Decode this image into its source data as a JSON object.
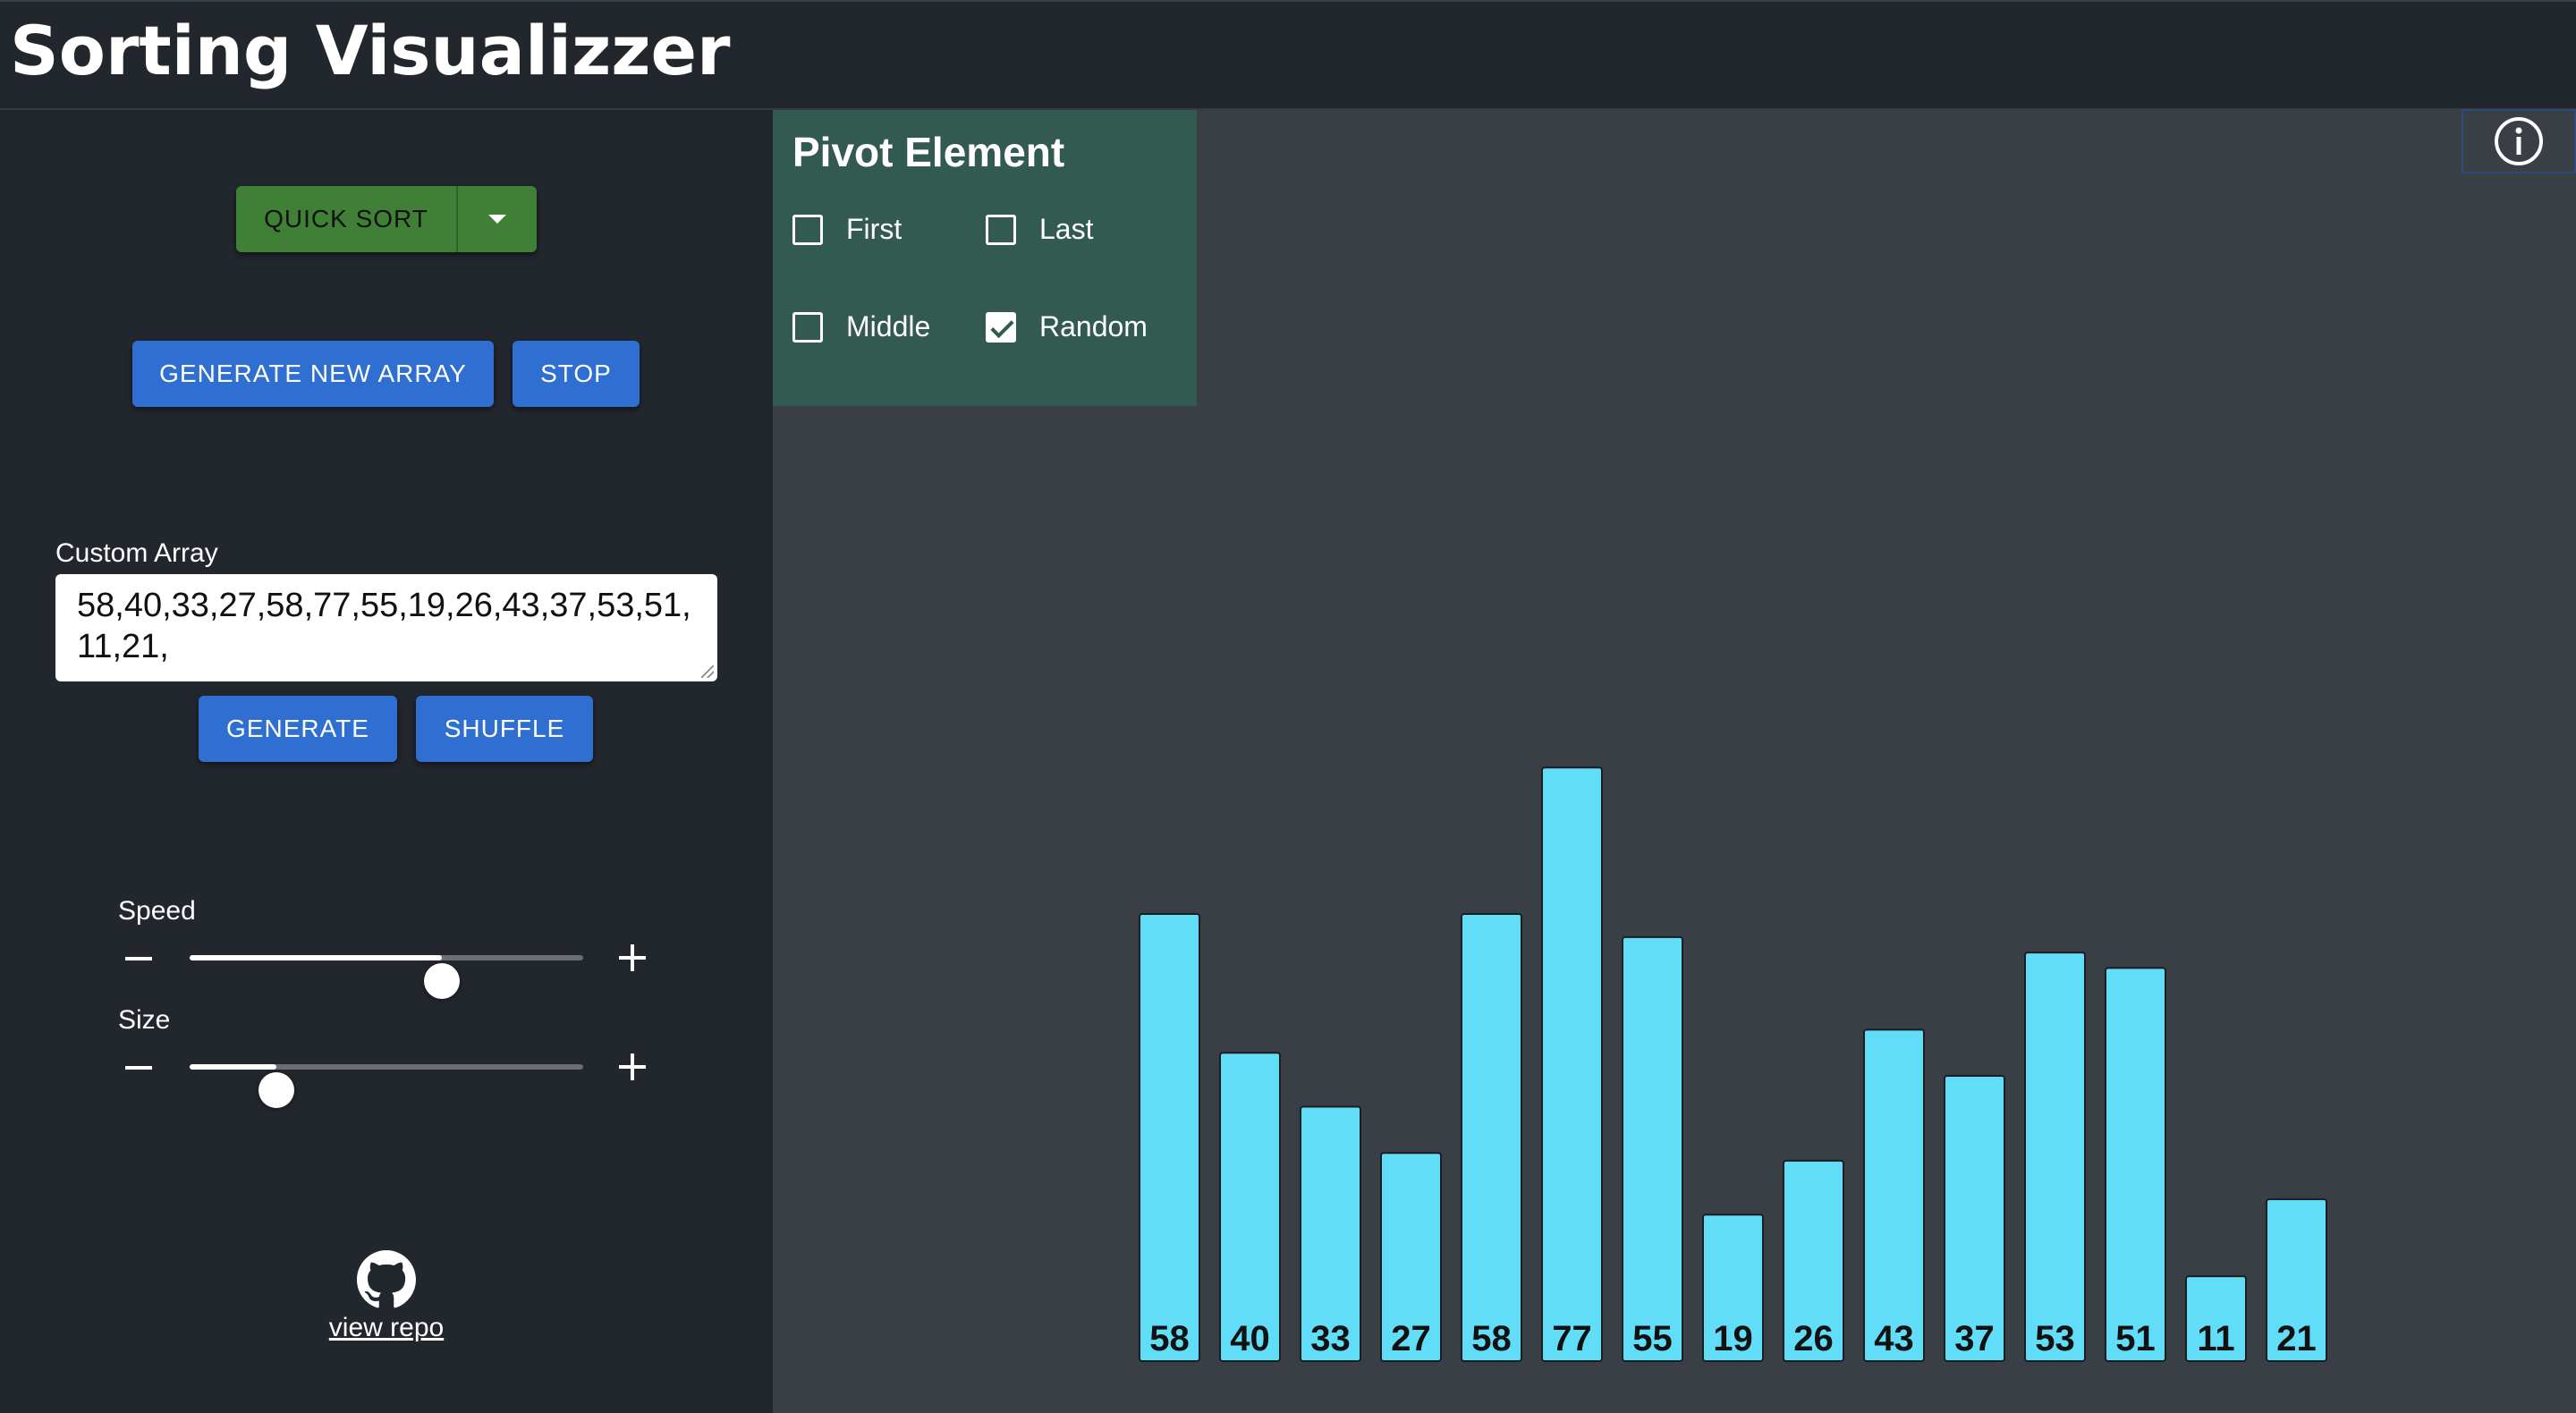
{
  "header": {
    "title": "Sorting Visualizzer"
  },
  "controls": {
    "algorithm": {
      "selected": "QUICK SORT"
    },
    "generate_new_array_label": "GENERATE NEW ARRAY",
    "stop_label": "STOP",
    "custom_array": {
      "label": "Custom Array",
      "value": "58,40,33,27,58,77,55,19,26,43,37,53,51,11,21,"
    },
    "generate_label": "GENERATE",
    "shuffle_label": "SHUFFLE",
    "speed": {
      "label": "Speed",
      "value_fraction": 0.64
    },
    "size": {
      "label": "Size",
      "value_fraction": 0.22
    },
    "github": {
      "icon": "github-icon",
      "link_text": "view repo"
    }
  },
  "pivot": {
    "title": "Pivot Element",
    "options": [
      {
        "label": "First",
        "checked": false
      },
      {
        "label": "Last",
        "checked": false
      },
      {
        "label": "Middle",
        "checked": false
      },
      {
        "label": "Random",
        "checked": true
      }
    ]
  },
  "info": {
    "icon": "info-icon"
  },
  "colors": {
    "bar": "#62ddf7",
    "sort_button": "#3f7f36",
    "action_button": "#2f6fd1",
    "pivot_panel": "#325a51",
    "sidebar": "#22262d",
    "main_bg": "#3a3f46"
  },
  "chart_data": {
    "type": "bar",
    "categories": [
      "58",
      "40",
      "33",
      "27",
      "58",
      "77",
      "55",
      "19",
      "26",
      "43",
      "37",
      "53",
      "51",
      "11",
      "21"
    ],
    "values": [
      58,
      40,
      33,
      27,
      58,
      77,
      55,
      19,
      26,
      43,
      37,
      53,
      51,
      11,
      21
    ],
    "title": "",
    "xlabel": "",
    "ylabel": ""
  }
}
